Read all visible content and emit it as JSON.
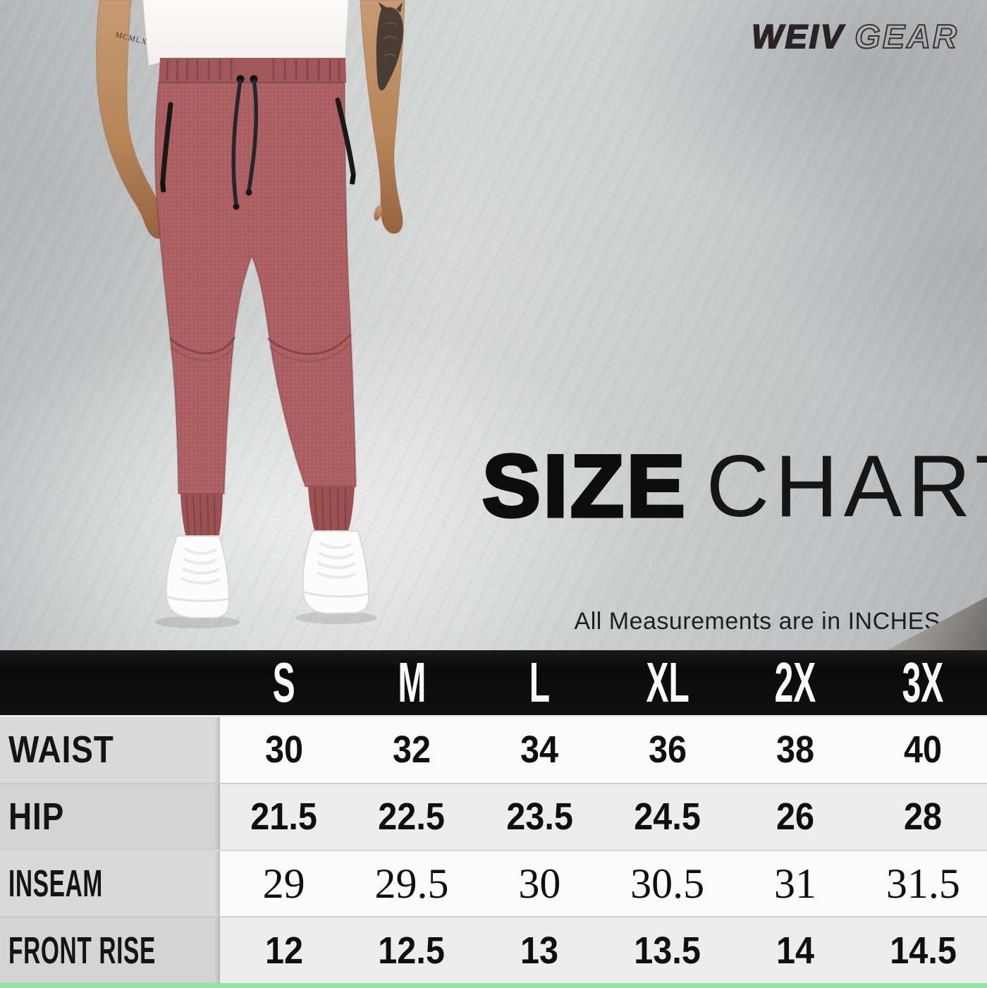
{
  "brand": {
    "logo_primary": "WEIV",
    "logo_secondary": "GEAR"
  },
  "title": {
    "bold": "SIZE",
    "light": "CHART"
  },
  "measurement_note": "All Measurements are in INCHES.",
  "photo": {
    "description": "Model wearing heather red jogger sweatpants with black drawstring and zipper pockets, white t-shirt and white sneakers",
    "tattoo_text": "MCMLX"
  },
  "chart_data": {
    "type": "table",
    "title": "SIZE CHART",
    "note": "All Measurements are in INCHES.",
    "columns": [
      "S",
      "M",
      "L",
      "XL",
      "2X",
      "3X"
    ],
    "rows": [
      {
        "label": "WAIST",
        "values": [
          "30",
          "32",
          "34",
          "36",
          "38",
          "40"
        ]
      },
      {
        "label": "HIP",
        "values": [
          "21.5",
          "22.5",
          "23.5",
          "24.5",
          "26",
          "28"
        ]
      },
      {
        "label": "INSEAM",
        "values": [
          "29",
          "29.5",
          "30",
          "30.5",
          "31",
          "31.5"
        ]
      },
      {
        "label": "FRONT RISE",
        "values": [
          "12",
          "12.5",
          "13",
          "13.5",
          "14",
          "14.5"
        ]
      }
    ],
    "layout_hints": {
      "header_bg": "#0e0e0e",
      "label_column_bg": "#d9d9d9",
      "row_bg_alternate": [
        "#fbfbfb",
        "#ededed"
      ],
      "serif_value_rows": [
        2
      ],
      "accent_bottom_bar": "#93e79d",
      "legend_position": "none",
      "grid": "row-dividers"
    }
  },
  "colors": {
    "background_gray": "#c9cbca",
    "pants_heather_red": "#ab5f60",
    "accent_green": "#93e79d",
    "header_black": "#0e0e0e"
  }
}
